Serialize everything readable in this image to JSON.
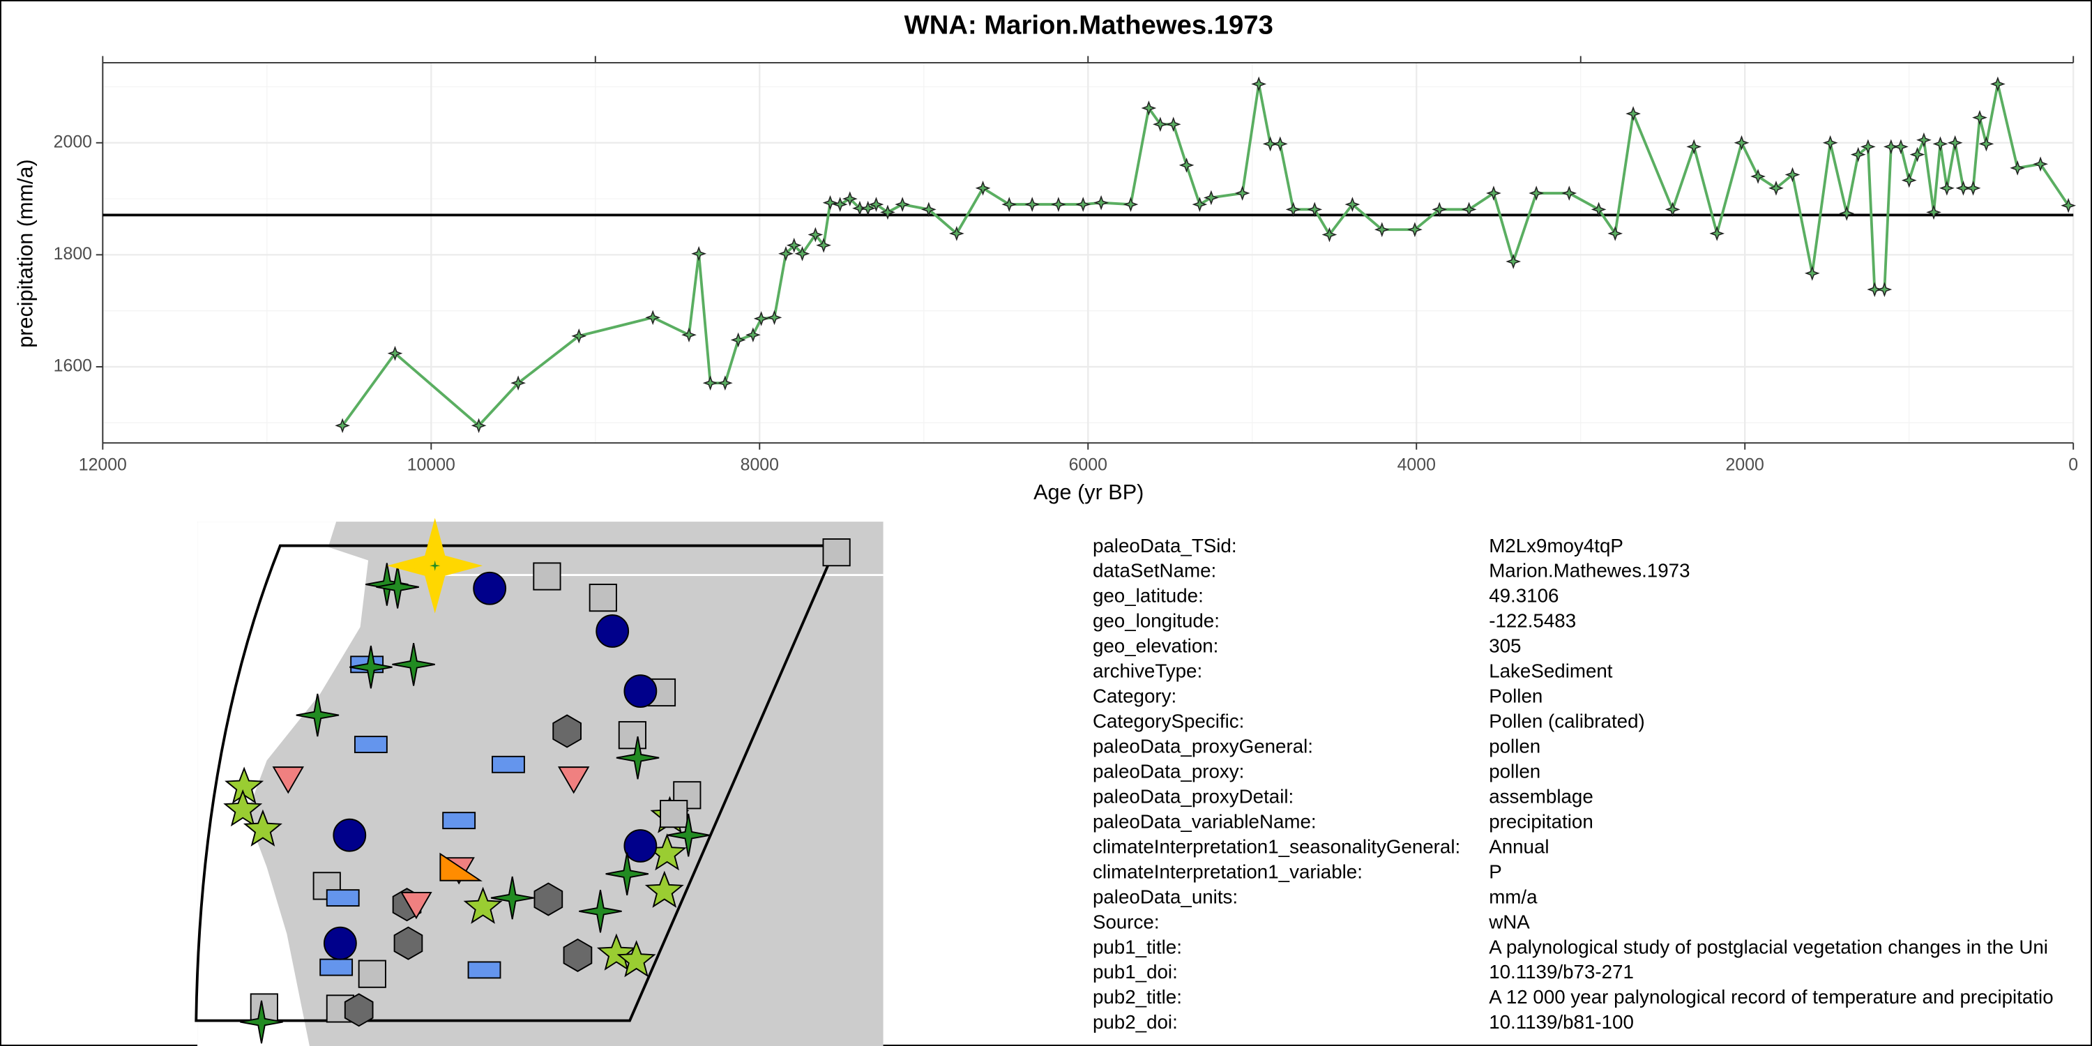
{
  "chart_data": {
    "type": "line",
    "title": "WNA: Marion.Mathewes.1973",
    "xlabel": "Age (yr BP)",
    "ylabel": "precipitation (mm/a)",
    "x": [
      10540,
      10220,
      9710,
      9470,
      9100,
      8650,
      8430,
      8370,
      8300,
      8210,
      8130,
      8040,
      7990,
      7910,
      7840,
      7790,
      7740,
      7660,
      7610,
      7570,
      7510,
      7450,
      7390,
      7340,
      7290,
      7220,
      7130,
      6970,
      6800,
      6640,
      6480,
      6340,
      6180,
      6030,
      5920,
      5740,
      5630,
      5560,
      5480,
      5400,
      5320,
      5250,
      5060,
      4960,
      4890,
      4830,
      4750,
      4620,
      4530,
      4390,
      4210,
      4010,
      3860,
      3680,
      3530,
      3410,
      3270,
      3070,
      2890,
      2790,
      2680,
      2440,
      2310,
      2170,
      2020,
      1920,
      1810,
      1710,
      1590,
      1480,
      1380,
      1310,
      1250,
      1210,
      1150,
      1110,
      1050,
      1000,
      950,
      910,
      850,
      810,
      770,
      720,
      670,
      610,
      570,
      530,
      460,
      340,
      200,
      30
    ],
    "series": [
      {
        "name": "precipitation",
        "color": "#5aae61",
        "values": [
          1495,
          1624,
          1495,
          1571,
          1655,
          1688,
          1657,
          1802,
          1571,
          1571,
          1648,
          1657,
          1686,
          1688,
          1802,
          1817,
          1802,
          1836,
          1817,
          1893,
          1890,
          1900,
          1883,
          1883,
          1890,
          1876,
          1890,
          1881,
          1838,
          1919,
          1890,
          1890,
          1890,
          1890,
          1893,
          1890,
          2062,
          2033,
          2033,
          1960,
          1890,
          1902,
          1910,
          2105,
          1998,
          1998,
          1881,
          1881,
          1836,
          1890,
          1845,
          1845,
          1881,
          1881,
          1910,
          1788,
          1910,
          1910,
          1881,
          1838,
          2052,
          1881,
          1993,
          1838,
          2000,
          1940,
          1919,
          1943,
          1767,
          2000,
          1874,
          1979,
          1993,
          1738,
          1738,
          1993,
          1993,
          1933,
          1979,
          2005,
          1876,
          1998,
          1919,
          2000,
          1919,
          1919,
          2045,
          1998,
          2105,
          1955,
          1962,
          1888
        ]
      }
    ],
    "hline": 1871,
    "xlim": [
      12000,
      0
    ],
    "xticks": [
      12000,
      10000,
      8000,
      6000,
      4000,
      2000,
      0
    ],
    "ylim": [
      1464,
      2143
    ],
    "yticks": [
      1600,
      1800,
      2000
    ],
    "grid": true
  },
  "metadata": {
    "rows": [
      [
        "paleoData_TSid:",
        "M2Lx9moy4tqP"
      ],
      [
        "dataSetName:",
        "Marion.Mathewes.1973"
      ],
      [
        "geo_latitude:",
        "49.3106"
      ],
      [
        "geo_longitude:",
        "-122.5483"
      ],
      [
        "geo_elevation:",
        "305"
      ],
      [
        "archiveType:",
        "LakeSediment"
      ],
      [
        "Category:",
        "Pollen"
      ],
      [
        "CategorySpecific:",
        "Pollen (calibrated)"
      ],
      [
        "paleoData_proxyGeneral:",
        "pollen"
      ],
      [
        "paleoData_proxy:",
        "pollen"
      ],
      [
        "paleoData_proxyDetail:",
        "assemblage"
      ],
      [
        "paleoData_variableName:",
        "precipitation"
      ],
      [
        "climateInterpretation1_seasonalityGeneral:",
        "Annual"
      ],
      [
        "climateInterpretation1_variable:",
        "P"
      ],
      [
        "paleoData_units:",
        "mm/a"
      ],
      [
        "Source:",
        "wNA"
      ],
      [
        "pub1_title:",
        "A palynological study of postglacial vegetation changes in the Uni"
      ],
      [
        "pub1_doi:",
        "10.1139/b73-271"
      ],
      [
        "pub2_title:",
        "A 12  000 year palynological record of temperature and precipitatio"
      ],
      [
        "pub2_doi:",
        "10.1139/b81-100"
      ]
    ]
  }
}
